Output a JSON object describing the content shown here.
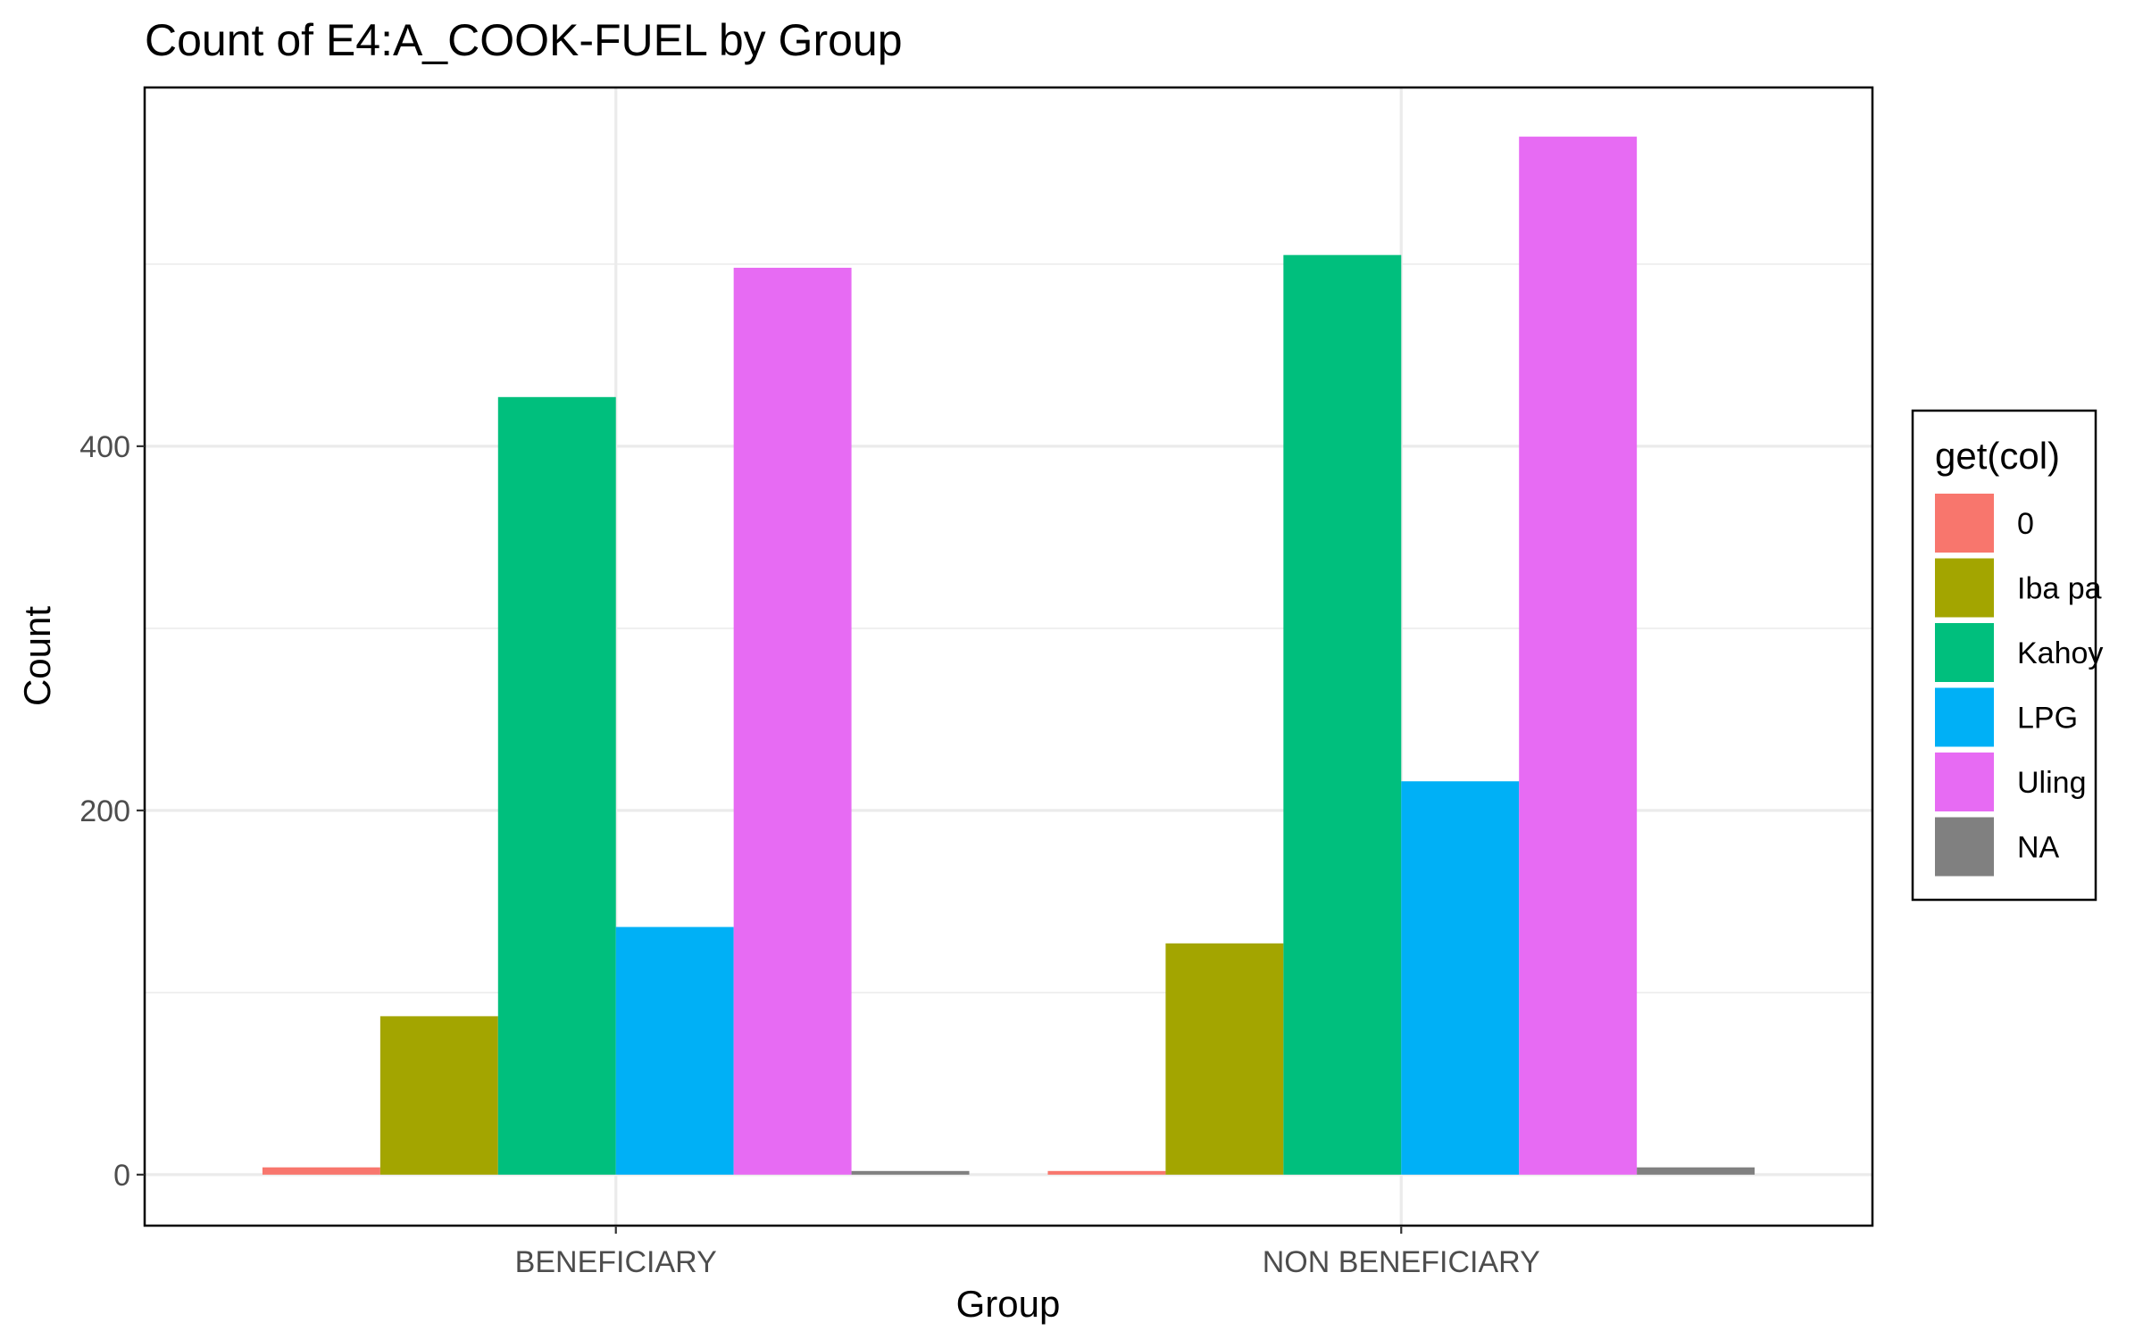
{
  "chart_data": {
    "type": "bar",
    "title": "Count of E4:A_COOK-FUEL by Group",
    "xlabel": "Group",
    "ylabel": "Count",
    "categories": [
      "BENEFICIARY",
      "NON BENEFICIARY"
    ],
    "series": [
      {
        "name": "0",
        "color": "#F8766D",
        "values": [
          4,
          2
        ]
      },
      {
        "name": "Iba pa",
        "color": "#A3A500",
        "values": [
          87,
          127
        ]
      },
      {
        "name": "Kahoy",
        "color": "#00BF7D",
        "values": [
          427,
          505
        ]
      },
      {
        "name": "LPG",
        "color": "#00B0F6",
        "values": [
          136,
          216
        ]
      },
      {
        "name": "Uling",
        "color": "#E76BF3",
        "values": [
          498,
          570
        ]
      },
      {
        "name": "NA",
        "color": "#808080",
        "values": [
          2,
          4
        ]
      }
    ],
    "ylim": [
      -28,
      597
    ],
    "y_ticks": [
      0,
      200,
      400
    ],
    "y_minor_ticks": [
      100,
      300,
      500
    ],
    "grid": true,
    "legend": {
      "title": "get(col)",
      "position": "right"
    }
  }
}
